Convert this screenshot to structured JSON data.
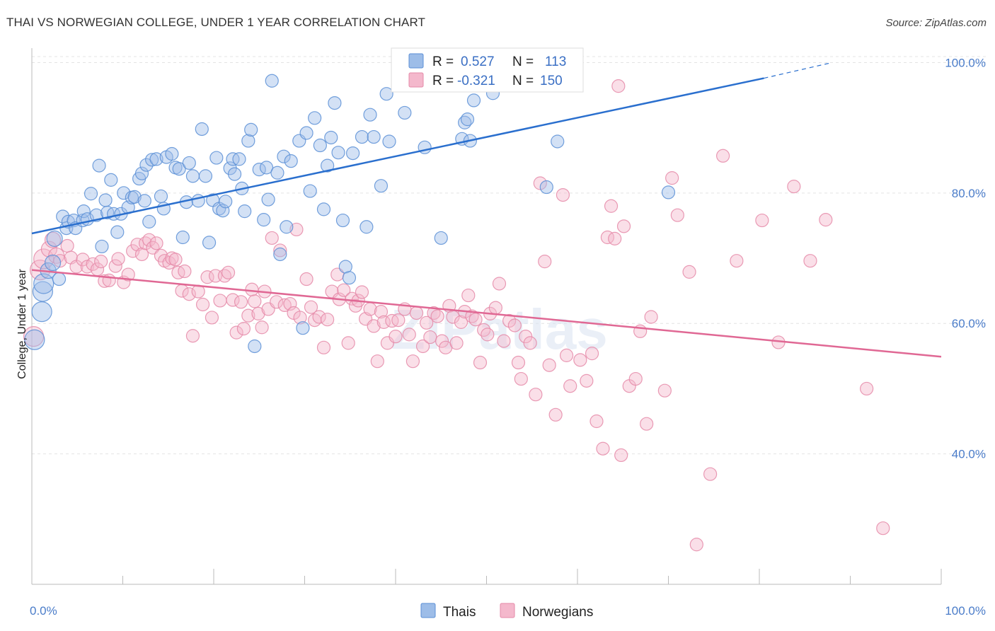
{
  "title": "THAI VS NORWEGIAN COLLEGE, UNDER 1 YEAR CORRELATION CHART",
  "source": "Source: ZipAtlas.com",
  "watermark": "ZIPatlas",
  "colors": {
    "thais_fill": "#9dbde8",
    "thais_stroke": "#5b8fd6",
    "thais_line": "#2a6fce",
    "norw_fill": "#f4b8cc",
    "norw_stroke": "#e58aa8",
    "norw_line": "#e06894",
    "grid": "#e4e4e4",
    "tick_text": "#4a7cc9"
  },
  "legend": {
    "r_label": "R =",
    "n_label": "N =",
    "rows": [
      {
        "series": "Thais",
        "r": "0.527",
        "n": "113"
      },
      {
        "series": "Norwegians",
        "r": "-0.321",
        "n": "150"
      }
    ]
  },
  "chart_data": {
    "type": "scatter",
    "title": "THAI VS NORWEGIAN COLLEGE, UNDER 1 YEAR CORRELATION CHART",
    "xlabel": "",
    "ylabel": "College, Under 1 year",
    "xlim": [
      0,
      100
    ],
    "ylim": [
      20,
      102
    ],
    "x_tick_labels": [
      "0.0%",
      "100.0%"
    ],
    "y_ticks": [
      40,
      60,
      80,
      100
    ],
    "y_tick_labels": [
      "40.0%",
      "60.0%",
      "80.0%",
      "100.0%"
    ],
    "grid": true,
    "legend_position": "top-center",
    "series": [
      {
        "name": "Thais",
        "r": 0.527,
        "n": 113,
        "trend": {
          "x0": 0,
          "y0": 73.8,
          "x1": 80.5,
          "y1": 97.6,
          "dashed_to_x": 88,
          "dashed_to_y": 100
        },
        "points": [
          [
            0.3,
            57.5
          ],
          [
            1.1,
            61.8
          ],
          [
            1.2,
            64.9
          ],
          [
            1.3,
            66.1
          ],
          [
            1.8,
            68.1
          ],
          [
            2.3,
            69.3
          ],
          [
            2.5,
            73.0
          ],
          [
            3.0,
            66.8
          ],
          [
            3.4,
            76.4
          ],
          [
            3.8,
            74.6
          ],
          [
            4.0,
            75.6
          ],
          [
            4.6,
            75.8
          ],
          [
            4.8,
            74.6
          ],
          [
            5.6,
            75.8
          ],
          [
            5.7,
            77.2
          ],
          [
            6.1,
            76.0
          ],
          [
            6.5,
            79.9
          ],
          [
            7.1,
            76.6
          ],
          [
            7.4,
            84.2
          ],
          [
            7.7,
            71.8
          ],
          [
            8.1,
            78.9
          ],
          [
            8.3,
            77.0
          ],
          [
            8.7,
            82.0
          ],
          [
            9.0,
            76.8
          ],
          [
            9.4,
            74.0
          ],
          [
            9.8,
            76.8
          ],
          [
            10.1,
            80.0
          ],
          [
            10.6,
            77.8
          ],
          [
            11.0,
            79.3
          ],
          [
            11.3,
            79.4
          ],
          [
            11.8,
            82.2
          ],
          [
            12.1,
            83.0
          ],
          [
            12.4,
            78.8
          ],
          [
            12.6,
            84.3
          ],
          [
            12.9,
            75.6
          ],
          [
            13.2,
            85.1
          ],
          [
            13.7,
            85.2
          ],
          [
            14.2,
            79.5
          ],
          [
            14.5,
            77.6
          ],
          [
            14.8,
            85.5
          ],
          [
            15.4,
            86.0
          ],
          [
            15.8,
            83.9
          ],
          [
            16.2,
            83.7
          ],
          [
            16.6,
            73.2
          ],
          [
            17.0,
            78.6
          ],
          [
            17.3,
            84.6
          ],
          [
            17.7,
            82.6
          ],
          [
            18.3,
            78.8
          ],
          [
            18.7,
            89.8
          ],
          [
            19.1,
            82.6
          ],
          [
            19.5,
            72.4
          ],
          [
            19.9,
            78.9
          ],
          [
            20.3,
            85.4
          ],
          [
            20.6,
            77.6
          ],
          [
            21.0,
            77.3
          ],
          [
            21.3,
            78.7
          ],
          [
            21.8,
            83.8
          ],
          [
            22.1,
            85.2
          ],
          [
            22.3,
            82.9
          ],
          [
            22.8,
            85.2
          ],
          [
            23.1,
            80.7
          ],
          [
            23.4,
            77.2
          ],
          [
            23.8,
            88.0
          ],
          [
            24.1,
            89.7
          ],
          [
            24.5,
            56.5
          ],
          [
            25.0,
            83.6
          ],
          [
            25.5,
            75.9
          ],
          [
            25.8,
            83.9
          ],
          [
            26.0,
            79.0
          ],
          [
            26.4,
            97.2
          ],
          [
            27.0,
            83.1
          ],
          [
            27.3,
            70.6
          ],
          [
            27.7,
            85.6
          ],
          [
            28.0,
            74.8
          ],
          [
            28.5,
            84.9
          ],
          [
            29.4,
            88.0
          ],
          [
            29.8,
            59.3
          ],
          [
            30.2,
            89.2
          ],
          [
            30.6,
            80.3
          ],
          [
            31.1,
            91.5
          ],
          [
            31.7,
            87.3
          ],
          [
            32.1,
            77.5
          ],
          [
            32.5,
            84.2
          ],
          [
            32.9,
            88.5
          ],
          [
            33.3,
            93.8
          ],
          [
            33.7,
            86.2
          ],
          [
            34.2,
            75.8
          ],
          [
            34.5,
            68.7
          ],
          [
            34.9,
            67.0
          ],
          [
            35.3,
            86.1
          ],
          [
            36.3,
            88.6
          ],
          [
            36.8,
            74.8
          ],
          [
            37.2,
            92.0
          ],
          [
            37.6,
            88.6
          ],
          [
            38.4,
            81.1
          ],
          [
            39.0,
            95.2
          ],
          [
            39.3,
            87.9
          ],
          [
            41.0,
            92.3
          ],
          [
            43.2,
            87.0
          ],
          [
            45.0,
            73.1
          ],
          [
            47.3,
            88.3
          ],
          [
            47.6,
            90.8
          ],
          [
            47.9,
            91.3
          ],
          [
            48.2,
            88.0
          ],
          [
            48.6,
            94.2
          ],
          [
            50.7,
            95.3
          ],
          [
            56.6,
            80.9
          ],
          [
            57.8,
            87.9
          ],
          [
            70.0,
            80.1
          ]
        ]
      },
      {
        "name": "Norwegians",
        "r": -0.321,
        "n": 150,
        "trend": {
          "x0": 0,
          "y0": 68.2,
          "x1": 100,
          "y1": 54.9
        },
        "points": [
          [
            0.2,
            58.0
          ],
          [
            0.9,
            68.2
          ],
          [
            1.3,
            69.9
          ],
          [
            1.9,
            71.4
          ],
          [
            2.3,
            72.8
          ],
          [
            2.7,
            70.4
          ],
          [
            3.1,
            69.6
          ],
          [
            3.9,
            71.9
          ],
          [
            4.3,
            70.1
          ],
          [
            4.9,
            68.7
          ],
          [
            5.6,
            69.8
          ],
          [
            6.1,
            68.7
          ],
          [
            6.7,
            69.1
          ],
          [
            7.2,
            68.3
          ],
          [
            7.6,
            69.5
          ],
          [
            8.0,
            66.5
          ],
          [
            8.5,
            66.6
          ],
          [
            9.2,
            68.8
          ],
          [
            9.5,
            69.9
          ],
          [
            10.1,
            66.3
          ],
          [
            10.6,
            67.5
          ],
          [
            11.1,
            71.1
          ],
          [
            11.6,
            72.1
          ],
          [
            12.1,
            70.6
          ],
          [
            12.5,
            72.3
          ],
          [
            12.9,
            72.8
          ],
          [
            13.3,
            71.6
          ],
          [
            13.7,
            72.3
          ],
          [
            14.2,
            70.4
          ],
          [
            14.6,
            69.6
          ],
          [
            15.1,
            69.3
          ],
          [
            15.4,
            70.0
          ],
          [
            15.8,
            69.8
          ],
          [
            16.1,
            67.8
          ],
          [
            16.5,
            65.0
          ],
          [
            16.8,
            68.0
          ],
          [
            17.3,
            64.5
          ],
          [
            17.7,
            58.1
          ],
          [
            18.3,
            64.9
          ],
          [
            18.8,
            62.9
          ],
          [
            19.3,
            67.1
          ],
          [
            19.8,
            60.9
          ],
          [
            20.2,
            67.3
          ],
          [
            20.7,
            63.5
          ],
          [
            21.2,
            67.3
          ],
          [
            21.6,
            67.8
          ],
          [
            22.1,
            63.6
          ],
          [
            22.5,
            58.6
          ],
          [
            23.0,
            63.3
          ],
          [
            23.3,
            59.2
          ],
          [
            23.8,
            61.2
          ],
          [
            24.2,
            65.2
          ],
          [
            24.5,
            63.4
          ],
          [
            24.9,
            61.5
          ],
          [
            25.3,
            59.4
          ],
          [
            25.6,
            64.9
          ],
          [
            26.0,
            62.2
          ],
          [
            26.4,
            73.1
          ],
          [
            26.9,
            63.3
          ],
          [
            27.3,
            71.2
          ],
          [
            27.8,
            62.8
          ],
          [
            28.4,
            63.0
          ],
          [
            28.8,
            61.6
          ],
          [
            29.1,
            74.4
          ],
          [
            29.5,
            60.9
          ],
          [
            30.2,
            66.8
          ],
          [
            30.7,
            62.5
          ],
          [
            31.1,
            60.5
          ],
          [
            31.6,
            61.0
          ],
          [
            32.1,
            56.3
          ],
          [
            32.5,
            60.6
          ],
          [
            33.0,
            64.9
          ],
          [
            33.6,
            67.5
          ],
          [
            33.8,
            63.7
          ],
          [
            34.3,
            65.1
          ],
          [
            34.8,
            57.0
          ],
          [
            35.2,
            63.8
          ],
          [
            35.6,
            62.7
          ],
          [
            35.9,
            63.5
          ],
          [
            36.3,
            64.8
          ],
          [
            36.7,
            60.7
          ],
          [
            37.2,
            62.2
          ],
          [
            37.6,
            59.6
          ],
          [
            38.0,
            54.2
          ],
          [
            38.4,
            61.8
          ],
          [
            38.7,
            60.2
          ],
          [
            39.1,
            57.0
          ],
          [
            39.6,
            60.4
          ],
          [
            40.0,
            58.0
          ],
          [
            40.3,
            60.5
          ],
          [
            41.0,
            62.2
          ],
          [
            41.5,
            58.3
          ],
          [
            41.9,
            54.2
          ],
          [
            42.3,
            61.6
          ],
          [
            43.0,
            56.5
          ],
          [
            43.4,
            60.1
          ],
          [
            43.8,
            57.9
          ],
          [
            44.2,
            61.6
          ],
          [
            44.6,
            61.1
          ],
          [
            45.1,
            57.3
          ],
          [
            45.5,
            56.3
          ],
          [
            45.9,
            62.7
          ],
          [
            46.3,
            61.0
          ],
          [
            46.7,
            57.0
          ],
          [
            47.2,
            60.2
          ],
          [
            47.6,
            61.8
          ],
          [
            48.0,
            64.3
          ],
          [
            48.4,
            61.1
          ],
          [
            48.8,
            60.6
          ],
          [
            49.3,
            54.0
          ],
          [
            49.7,
            59.0
          ],
          [
            50.1,
            58.3
          ],
          [
            50.4,
            61.5
          ],
          [
            51.0,
            62.4
          ],
          [
            51.4,
            66.1
          ],
          [
            51.9,
            57.3
          ],
          [
            52.5,
            60.4
          ],
          [
            53.1,
            59.7
          ],
          [
            53.5,
            54.0
          ],
          [
            53.8,
            51.5
          ],
          [
            54.3,
            58.0
          ],
          [
            54.8,
            57.0
          ],
          [
            55.4,
            49.1
          ],
          [
            55.9,
            81.5
          ],
          [
            56.4,
            69.5
          ],
          [
            56.9,
            53.6
          ],
          [
            57.6,
            46.0
          ],
          [
            58.4,
            79.7
          ],
          [
            58.8,
            55.1
          ],
          [
            59.2,
            50.4
          ],
          [
            60.3,
            54.4
          ],
          [
            61.0,
            51.2
          ],
          [
            61.6,
            55.4
          ],
          [
            62.1,
            45.0
          ],
          [
            62.8,
            40.8
          ],
          [
            63.3,
            73.2
          ],
          [
            63.7,
            78.0
          ],
          [
            64.1,
            73.0
          ],
          [
            64.5,
            96.4
          ],
          [
            64.8,
            39.8
          ],
          [
            65.1,
            74.9
          ],
          [
            65.7,
            50.4
          ],
          [
            66.4,
            51.5
          ],
          [
            66.9,
            58.8
          ],
          [
            67.6,
            44.6
          ],
          [
            68.1,
            61.0
          ],
          [
            69.6,
            49.7
          ],
          [
            70.4,
            82.3
          ],
          [
            71.0,
            76.6
          ],
          [
            72.3,
            67.9
          ],
          [
            73.1,
            26.1
          ],
          [
            74.6,
            36.9
          ],
          [
            76.0,
            85.7
          ],
          [
            77.5,
            69.6
          ],
          [
            80.3,
            75.8
          ],
          [
            82.1,
            57.1
          ],
          [
            83.8,
            81.0
          ],
          [
            85.6,
            69.6
          ],
          [
            87.3,
            75.9
          ],
          [
            91.8,
            50.0
          ],
          [
            93.6,
            28.6
          ]
        ]
      }
    ]
  }
}
